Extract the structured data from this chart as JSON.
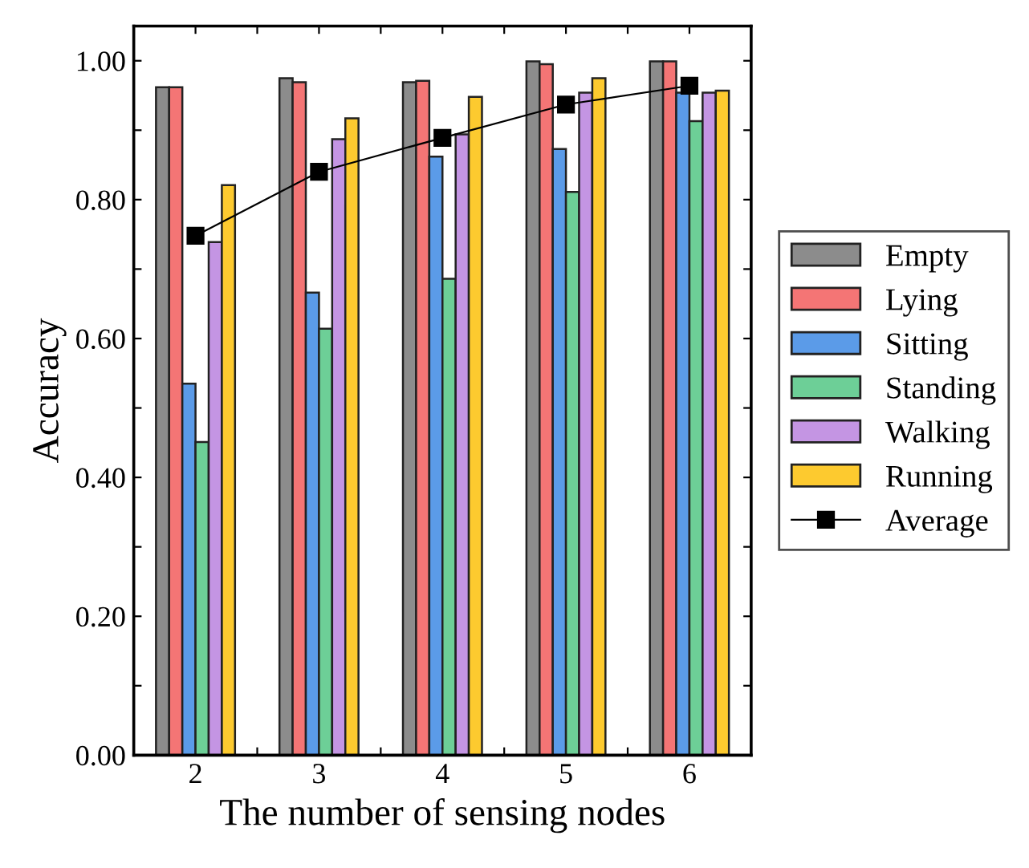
{
  "chart_data": {
    "type": "bar",
    "xlabel": "The number of sensing nodes",
    "ylabel": "Accuracy",
    "x": [
      2,
      3,
      4,
      5,
      6
    ],
    "series": [
      {
        "name": "Empty",
        "color": "#8c8c8c",
        "values": [
          0.962,
          0.975,
          0.969,
          0.999,
          0.999
        ]
      },
      {
        "name": "Lying",
        "color": "#f47575",
        "values": [
          0.962,
          0.969,
          0.971,
          0.995,
          0.999
        ]
      },
      {
        "name": "Sitting",
        "color": "#5b9be8",
        "values": [
          0.535,
          0.666,
          0.862,
          0.873,
          0.954
        ]
      },
      {
        "name": "Standing",
        "color": "#6dcf97",
        "values": [
          0.451,
          0.614,
          0.686,
          0.811,
          0.913
        ]
      },
      {
        "name": "Walking",
        "color": "#c495e3",
        "values": [
          0.739,
          0.887,
          0.894,
          0.954,
          0.954
        ]
      },
      {
        "name": "Running",
        "color": "#fdca2f",
        "values": [
          0.821,
          0.917,
          0.948,
          0.975,
          0.957
        ]
      },
      {
        "name": "Average",
        "color": "#000000",
        "type": "line",
        "marker": "square",
        "values": [
          0.748,
          0.84,
          0.889,
          0.937,
          0.964
        ]
      }
    ],
    "xlim": [
      1.5,
      6.5
    ],
    "xticks": [
      2,
      {
        "value": 2.5,
        "label": null
      },
      3,
      {
        "value": 3.5,
        "label": null
      },
      4,
      {
        "value": 4.5,
        "label": null
      },
      5,
      {
        "value": 5.5,
        "label": null
      },
      6
    ],
    "ylim": [
      0,
      1.05
    ],
    "yticks": [
      {
        "value": 0,
        "label": "0.00"
      },
      {
        "value": 0.1,
        "label": null
      },
      {
        "value": 0.2,
        "label": "0.20"
      },
      {
        "value": 0.3,
        "label": null
      },
      {
        "value": 0.4,
        "label": "0.40"
      },
      {
        "value": 0.5,
        "label": null
      },
      {
        "value": 0.6,
        "label": "0.60"
      },
      {
        "value": 0.7,
        "label": null
      },
      {
        "value": 0.8,
        "label": "0.80"
      },
      {
        "value": 0.9,
        "label": null
      },
      {
        "value": 1.0,
        "label": "1.00"
      }
    ],
    "legend": "right",
    "grid": false
  }
}
